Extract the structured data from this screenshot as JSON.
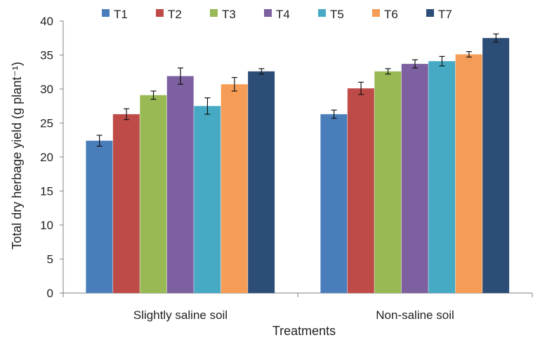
{
  "chart_data": {
    "type": "bar",
    "categories": [
      "Slightly saline soil",
      "Non-saline soil"
    ],
    "series": [
      {
        "name": "T1",
        "color": "#4a7ebb",
        "values": [
          22.4,
          26.3
        ],
        "errors": [
          0.8,
          0.6
        ]
      },
      {
        "name": "T2",
        "color": "#be4b48",
        "values": [
          26.3,
          30.1
        ],
        "errors": [
          0.8,
          0.9
        ]
      },
      {
        "name": "T3",
        "color": "#98b954",
        "values": [
          29.1,
          32.6
        ],
        "errors": [
          0.6,
          0.4
        ]
      },
      {
        "name": "T4",
        "color": "#7d60a0",
        "values": [
          31.9,
          33.7
        ],
        "errors": [
          1.2,
          0.6
        ]
      },
      {
        "name": "T5",
        "color": "#46aac4",
        "values": [
          27.5,
          34.1
        ],
        "errors": [
          1.2,
          0.7
        ]
      },
      {
        "name": "T6",
        "color": "#f59d56",
        "values": [
          30.7,
          35.1
        ],
        "errors": [
          1.0,
          0.4
        ]
      },
      {
        "name": "T7",
        "color": "#2c4d75",
        "values": [
          32.6,
          37.5
        ],
        "errors": [
          0.4,
          0.6
        ]
      }
    ],
    "xlabel": "Treatments",
    "ylabel": "Total dry herbage yield (g plant⁻¹)",
    "ylim": [
      0,
      40
    ],
    "yticks": [
      "0",
      "5",
      "10",
      "15",
      "20",
      "25",
      "30",
      "35",
      "40"
    ],
    "grid": false,
    "legend_position": "top"
  }
}
